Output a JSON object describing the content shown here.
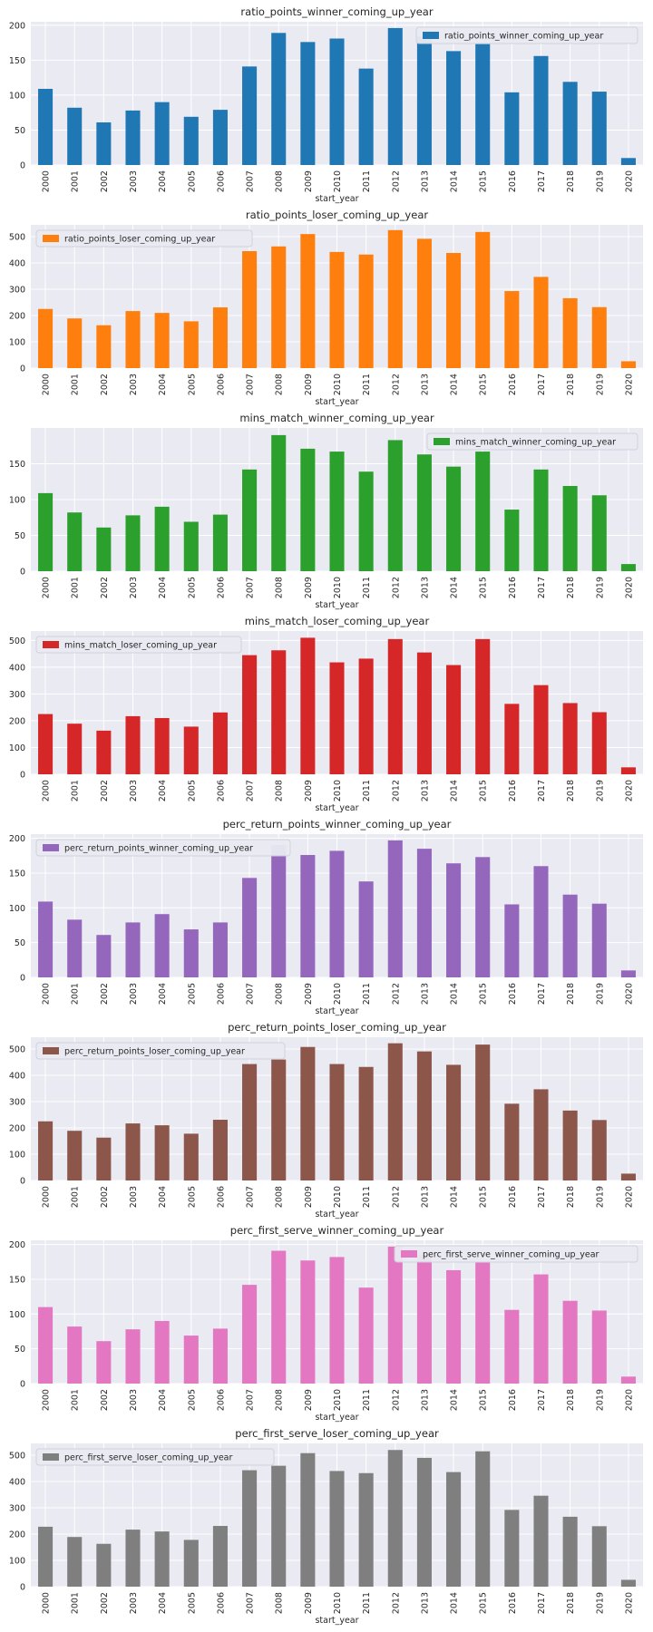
{
  "figure": {
    "background": "#ffffff",
    "axes_face": "#eaeaf2",
    "grid_color": "#ffffff"
  },
  "chart_data": [
    {
      "type": "bar",
      "title": "ratio_points_winner_coming_up_year",
      "xlabel": "start_year",
      "ylabel": "",
      "categories": [
        "2000",
        "2001",
        "2002",
        "2003",
        "2004",
        "2005",
        "2006",
        "2007",
        "2008",
        "2009",
        "2010",
        "2011",
        "2012",
        "2013",
        "2014",
        "2015",
        "2016",
        "2017",
        "2018",
        "2019",
        "2020"
      ],
      "series": [
        {
          "name": "ratio_points_winner_coming_up_year",
          "color": "#1f77b4",
          "values": [
            109,
            82,
            61,
            78,
            90,
            69,
            79,
            141,
            189,
            176,
            181,
            138,
            196,
            184,
            163,
            173,
            104,
            156,
            119,
            105,
            10
          ]
        }
      ],
      "ylim": [
        0,
        205
      ],
      "yticks": [
        0,
        50,
        100,
        150,
        200
      ],
      "legend_loc": "upper right",
      "grid": true
    },
    {
      "type": "bar",
      "title": "ratio_points_loser_coming_up_year",
      "xlabel": "start_year",
      "ylabel": "",
      "categories": [
        "2000",
        "2001",
        "2002",
        "2003",
        "2004",
        "2005",
        "2006",
        "2007",
        "2008",
        "2009",
        "2010",
        "2011",
        "2012",
        "2013",
        "2014",
        "2015",
        "2016",
        "2017",
        "2018",
        "2019",
        "2020"
      ],
      "series": [
        {
          "name": "ratio_points_loser_coming_up_year",
          "color": "#ff7f0e",
          "values": [
            225,
            189,
            163,
            217,
            210,
            178,
            231,
            445,
            463,
            510,
            442,
            432,
            525,
            492,
            438,
            518,
            293,
            347,
            266,
            232,
            26
          ]
        }
      ],
      "ylim": [
        0,
        545
      ],
      "yticks": [
        0,
        100,
        200,
        300,
        400,
        500
      ],
      "legend_loc": "upper left",
      "grid": true
    },
    {
      "type": "bar",
      "title": "mins_match_winner_coming_up_year",
      "xlabel": "start_year",
      "ylabel": "",
      "categories": [
        "2000",
        "2001",
        "2002",
        "2003",
        "2004",
        "2005",
        "2006",
        "2007",
        "2008",
        "2009",
        "2010",
        "2011",
        "2012",
        "2013",
        "2014",
        "2015",
        "2016",
        "2017",
        "2018",
        "2019",
        "2020"
      ],
      "series": [
        {
          "name": "mins_match_winner_coming_up_year",
          "color": "#2ca02c",
          "values": [
            109,
            82,
            61,
            78,
            90,
            69,
            79,
            142,
            190,
            171,
            167,
            139,
            183,
            163,
            146,
            167,
            86,
            142,
            119,
            106,
            10
          ]
        }
      ],
      "ylim": [
        0,
        200
      ],
      "yticks": [
        0,
        50,
        100,
        150
      ],
      "legend_loc": "upper right",
      "grid": true
    },
    {
      "type": "bar",
      "title": "mins_match_loser_coming_up_year",
      "xlabel": "start_year",
      "ylabel": "",
      "categories": [
        "2000",
        "2001",
        "2002",
        "2003",
        "2004",
        "2005",
        "2006",
        "2007",
        "2008",
        "2009",
        "2010",
        "2011",
        "2012",
        "2013",
        "2014",
        "2015",
        "2016",
        "2017",
        "2018",
        "2019",
        "2020"
      ],
      "series": [
        {
          "name": "mins_match_loser_coming_up_year",
          "color": "#d62728",
          "values": [
            225,
            189,
            163,
            217,
            210,
            178,
            231,
            445,
            463,
            510,
            418,
            432,
            505,
            455,
            408,
            505,
            263,
            333,
            266,
            232,
            26
          ]
        }
      ],
      "ylim": [
        0,
        535
      ],
      "yticks": [
        0,
        100,
        200,
        300,
        400,
        500
      ],
      "legend_loc": "upper left",
      "grid": true
    },
    {
      "type": "bar",
      "title": "perc_return_points_winner_coming_up_year",
      "xlabel": "start_year",
      "ylabel": "",
      "categories": [
        "2000",
        "2001",
        "2002",
        "2003",
        "2004",
        "2005",
        "2006",
        "2007",
        "2008",
        "2009",
        "2010",
        "2011",
        "2012",
        "2013",
        "2014",
        "2015",
        "2016",
        "2017",
        "2018",
        "2019",
        "2020"
      ],
      "series": [
        {
          "name": "perc_return_points_winner_coming_up_year",
          "color": "#9467bd",
          "values": [
            109,
            83,
            61,
            79,
            91,
            69,
            79,
            143,
            190,
            176,
            182,
            138,
            197,
            185,
            164,
            173,
            105,
            160,
            119,
            106,
            10
          ]
        }
      ],
      "ylim": [
        0,
        206
      ],
      "yticks": [
        0,
        50,
        100,
        150,
        200
      ],
      "legend_loc": "upper left",
      "grid": true
    },
    {
      "type": "bar",
      "title": "perc_return_points_loser_coming_up_year",
      "xlabel": "start_year",
      "ylabel": "",
      "categories": [
        "2000",
        "2001",
        "2002",
        "2003",
        "2004",
        "2005",
        "2006",
        "2007",
        "2008",
        "2009",
        "2010",
        "2011",
        "2012",
        "2013",
        "2014",
        "2015",
        "2016",
        "2017",
        "2018",
        "2019",
        "2020"
      ],
      "series": [
        {
          "name": "perc_return_points_loser_coming_up_year",
          "color": "#8c564b",
          "values": [
            225,
            189,
            163,
            217,
            210,
            178,
            231,
            443,
            460,
            508,
            443,
            432,
            522,
            491,
            440,
            517,
            292,
            347,
            266,
            230,
            26
          ]
        }
      ],
      "ylim": [
        0,
        545
      ],
      "yticks": [
        0,
        100,
        200,
        300,
        400,
        500
      ],
      "legend_loc": "upper left",
      "grid": true
    },
    {
      "type": "bar",
      "title": "perc_first_serve_winner_coming_up_year",
      "xlabel": "start_year",
      "ylabel": "",
      "categories": [
        "2000",
        "2001",
        "2002",
        "2003",
        "2004",
        "2005",
        "2006",
        "2007",
        "2008",
        "2009",
        "2010",
        "2011",
        "2012",
        "2013",
        "2014",
        "2015",
        "2016",
        "2017",
        "2018",
        "2019",
        "2020"
      ],
      "series": [
        {
          "name": "perc_first_serve_winner_coming_up_year",
          "color": "#e377c2",
          "values": [
            110,
            82,
            61,
            78,
            90,
            69,
            79,
            142,
            191,
            177,
            182,
            138,
            197,
            185,
            163,
            174,
            106,
            157,
            119,
            105,
            10
          ]
        }
      ],
      "ylim": [
        0,
        206
      ],
      "yticks": [
        0,
        50,
        100,
        150,
        200
      ],
      "legend_loc": "upper right",
      "grid": true
    },
    {
      "type": "bar",
      "title": "perc_first_serve_loser_coming_up_year",
      "xlabel": "start_year",
      "ylabel": "",
      "categories": [
        "2000",
        "2001",
        "2002",
        "2003",
        "2004",
        "2005",
        "2006",
        "2007",
        "2008",
        "2009",
        "2010",
        "2011",
        "2012",
        "2013",
        "2014",
        "2015",
        "2016",
        "2017",
        "2018",
        "2019",
        "2020"
      ],
      "series": [
        {
          "name": "perc_first_serve_loser_coming_up_year",
          "color": "#7f7f7f",
          "values": [
            228,
            189,
            163,
            217,
            210,
            178,
            231,
            443,
            460,
            508,
            440,
            432,
            520,
            490,
            436,
            515,
            292,
            346,
            266,
            230,
            26
          ]
        }
      ],
      "ylim": [
        0,
        545
      ],
      "yticks": [
        0,
        100,
        200,
        300,
        400,
        500
      ],
      "legend_loc": "upper left",
      "grid": true
    }
  ]
}
